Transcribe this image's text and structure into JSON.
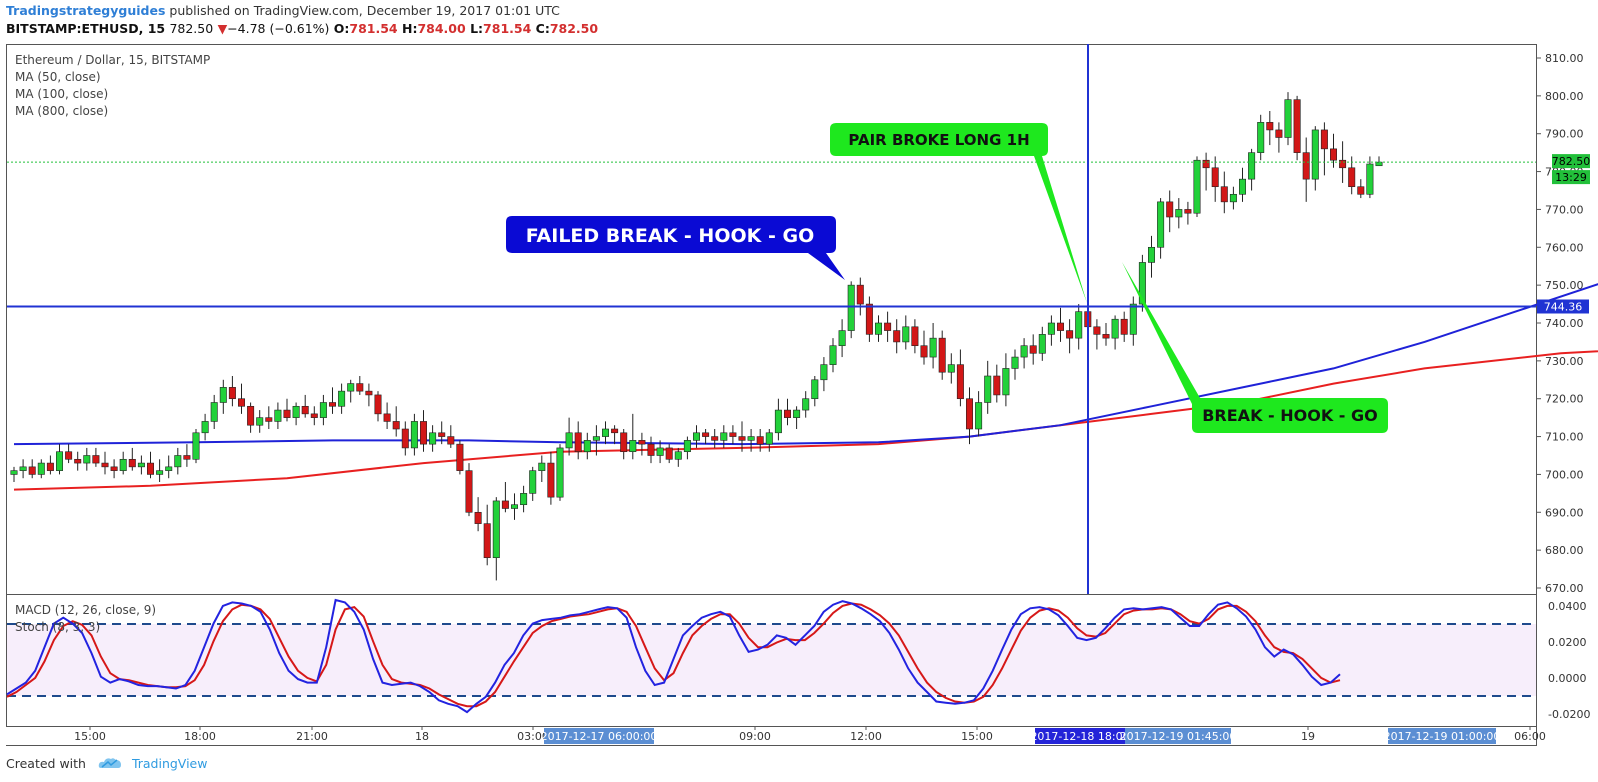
{
  "header": {
    "author": "Tradingstrategyguides",
    "published": "published on TradingView.com, December 19, 2017 01:01 UTC",
    "symbol": "BITSTAMP:ETHUSD, 15",
    "last": "782.50",
    "change_arrow": "▼",
    "change": "−4.78 (−0.61%)",
    "o_label": "O:",
    "o": "781.54",
    "h_label": "H:",
    "h": "784.00",
    "l_label": "L:",
    "l": "781.54",
    "c_label": "C:",
    "c": "782.50"
  },
  "legend": {
    "instrument": "Ethereum / Dollar, 15, BITSTAMP",
    "ma50": "MA (50, close)",
    "ma100": "MA (100, close)",
    "ma800": "MA (800, close)",
    "macd": "MACD (12, 26, close, 9)",
    "stoch": "Stoch (8, 3, 3)"
  },
  "annotations": {
    "failed": "FAILED BREAK - HOOK - GO",
    "pair": "PAIR BROKE LONG 1H",
    "break": "BREAK - HOOK - GO"
  },
  "footer": {
    "created": "Created with",
    "brand": "TradingView"
  },
  "colors": {
    "bull": "#22d13a",
    "bear": "#d21717",
    "ma_blue": "#1f22d8",
    "ma_red": "#e82020",
    "level": "#2033d3",
    "callout_blue": "#0a0ad4",
    "callout_green": "#1ee81e",
    "stoch_k": "#2323e0",
    "stoch_d": "#d61818",
    "stoch_band": "#f7eefb",
    "dashed": "#1e4a8c"
  },
  "chart_data": {
    "type": "candlestick",
    "price_axis": {
      "min": 670,
      "max": 810,
      "ticks": [
        "810.00",
        "800.00",
        "790.00",
        "780.00",
        "770.00",
        "760.00",
        "750.00",
        "740.00",
        "730.00",
        "720.00",
        "710.00",
        "700.00",
        "690.00",
        "680.00",
        "670.00"
      ]
    },
    "last_price": "782.50",
    "last_price_timer": "13:29",
    "horizontal_level": "744.36",
    "osc_axis": {
      "ticks": [
        "0.0400",
        "0.0200",
        "0.0000",
        "-0.0200"
      ]
    },
    "time_axis": {
      "ticks": [
        "15:00",
        "18:00",
        "21:00",
        "18",
        "03:00",
        "09:00",
        "12:00",
        "15:00",
        "19",
        "06:00"
      ]
    },
    "time_highlights": [
      "2017-12-17 06:00:00",
      "2017-12-18 18:00",
      "2017-12-19 01:45:00",
      "2017-12-19 01:00:00"
    ],
    "candles": [
      [
        700,
        702,
        698,
        701
      ],
      [
        701,
        704,
        699,
        702
      ],
      [
        702,
        704,
        699,
        700
      ],
      [
        700,
        704,
        699,
        703
      ],
      [
        703,
        705,
        700,
        701
      ],
      [
        701,
        708,
        700,
        706
      ],
      [
        706,
        708,
        703,
        704
      ],
      [
        704,
        706,
        701,
        703
      ],
      [
        703,
        707,
        701,
        705
      ],
      [
        705,
        707,
        702,
        703
      ],
      [
        703,
        706,
        700,
        702
      ],
      [
        702,
        704,
        699,
        701
      ],
      [
        701,
        706,
        700,
        704
      ],
      [
        704,
        707,
        701,
        702
      ],
      [
        702,
        705,
        700,
        703
      ],
      [
        703,
        706,
        699,
        700
      ],
      [
        700,
        704,
        698,
        701
      ],
      [
        701,
        705,
        699,
        702
      ],
      [
        702,
        707,
        700,
        705
      ],
      [
        705,
        708,
        702,
        704
      ],
      [
        704,
        712,
        703,
        711
      ],
      [
        711,
        716,
        709,
        714
      ],
      [
        714,
        721,
        712,
        719
      ],
      [
        719,
        725,
        716,
        723
      ],
      [
        723,
        726,
        718,
        720
      ],
      [
        720,
        724,
        716,
        718
      ],
      [
        718,
        719,
        711,
        713
      ],
      [
        713,
        717,
        711,
        715
      ],
      [
        715,
        718,
        712,
        714
      ],
      [
        714,
        719,
        712,
        717
      ],
      [
        717,
        720,
        714,
        715
      ],
      [
        715,
        719,
        713,
        718
      ],
      [
        718,
        721,
        715,
        716
      ],
      [
        716,
        718,
        713,
        715
      ],
      [
        715,
        721,
        713,
        719
      ],
      [
        719,
        723,
        716,
        718
      ],
      [
        718,
        724,
        716,
        722
      ],
      [
        722,
        725,
        719,
        724
      ],
      [
        724,
        726,
        721,
        722
      ],
      [
        722,
        724,
        718,
        721
      ],
      [
        721,
        722,
        714,
        716
      ],
      [
        716,
        719,
        712,
        714
      ],
      [
        714,
        718,
        710,
        712
      ],
      [
        712,
        714,
        705,
        707
      ],
      [
        707,
        716,
        705,
        714
      ],
      [
        714,
        717,
        706,
        708
      ],
      [
        708,
        713,
        706,
        711
      ],
      [
        711,
        714,
        708,
        710
      ],
      [
        710,
        713,
        707,
        708
      ],
      [
        708,
        709,
        700,
        701
      ],
      [
        701,
        703,
        689,
        690
      ],
      [
        690,
        694,
        685,
        687
      ],
      [
        687,
        692,
        676,
        678
      ],
      [
        678,
        694,
        672,
        693
      ],
      [
        693,
        698,
        690,
        691
      ],
      [
        691,
        695,
        688,
        692
      ],
      [
        692,
        697,
        690,
        695
      ],
      [
        695,
        702,
        693,
        701
      ],
      [
        701,
        705,
        698,
        703
      ],
      [
        703,
        706,
        692,
        694
      ],
      [
        694,
        708,
        693,
        707
      ],
      [
        707,
        715,
        705,
        711
      ],
      [
        711,
        714,
        704,
        706
      ],
      [
        706,
        711,
        704,
        709
      ],
      [
        709,
        713,
        705,
        710
      ],
      [
        710,
        714,
        708,
        712
      ],
      [
        712,
        713,
        708,
        711
      ],
      [
        711,
        712,
        704,
        706
      ],
      [
        706,
        716,
        704,
        709
      ],
      [
        709,
        711,
        705,
        708
      ],
      [
        708,
        710,
        703,
        705
      ],
      [
        705,
        709,
        703,
        707
      ],
      [
        707,
        708,
        703,
        704
      ],
      [
        704,
        707,
        702,
        706
      ],
      [
        706,
        710,
        704,
        709
      ],
      [
        709,
        713,
        707,
        711
      ],
      [
        711,
        712,
        708,
        710
      ],
      [
        710,
        712,
        707,
        709
      ],
      [
        709,
        713,
        707,
        711
      ],
      [
        711,
        713,
        708,
        710
      ],
      [
        710,
        714,
        706,
        709
      ],
      [
        709,
        712,
        706,
        710
      ],
      [
        710,
        712,
        706,
        708
      ],
      [
        708,
        712,
        706,
        711
      ],
      [
        711,
        720,
        709,
        717
      ],
      [
        717,
        720,
        713,
        715
      ],
      [
        715,
        718,
        712,
        717
      ],
      [
        717,
        722,
        715,
        720
      ],
      [
        720,
        726,
        718,
        725
      ],
      [
        725,
        731,
        722,
        729
      ],
      [
        729,
        736,
        727,
        734
      ],
      [
        734,
        741,
        731,
        738
      ],
      [
        738,
        751,
        736,
        750
      ],
      [
        750,
        752,
        742,
        745
      ],
      [
        745,
        747,
        735,
        737
      ],
      [
        737,
        742,
        735,
        740
      ],
      [
        740,
        743,
        735,
        738
      ],
      [
        738,
        741,
        732,
        735
      ],
      [
        735,
        742,
        733,
        739
      ],
      [
        739,
        741,
        732,
        734
      ],
      [
        734,
        738,
        729,
        731
      ],
      [
        731,
        740,
        728,
        736
      ],
      [
        736,
        738,
        725,
        727
      ],
      [
        727,
        732,
        724,
        729
      ],
      [
        729,
        733,
        718,
        720
      ],
      [
        720,
        723,
        708,
        712
      ],
      [
        712,
        722,
        710,
        719
      ],
      [
        719,
        730,
        716,
        726
      ],
      [
        726,
        729,
        719,
        721
      ],
      [
        721,
        732,
        718,
        728
      ],
      [
        728,
        733,
        725,
        731
      ],
      [
        731,
        736,
        728,
        734
      ],
      [
        734,
        737,
        729,
        732
      ],
      [
        732,
        739,
        730,
        737
      ],
      [
        737,
        742,
        734,
        740
      ],
      [
        740,
        744,
        735,
        738
      ],
      [
        738,
        741,
        732,
        736
      ],
      [
        736,
        745,
        733,
        743
      ],
      [
        743,
        745,
        736,
        739
      ],
      [
        739,
        741,
        733,
        737
      ],
      [
        737,
        740,
        734,
        736
      ],
      [
        736,
        742,
        733,
        741
      ],
      [
        741,
        743,
        735,
        737
      ],
      [
        737,
        747,
        734,
        745
      ],
      [
        745,
        758,
        743,
        756
      ],
      [
        756,
        763,
        752,
        760
      ],
      [
        760,
        773,
        757,
        772
      ],
      [
        772,
        775,
        764,
        768
      ],
      [
        768,
        773,
        765,
        770
      ],
      [
        770,
        772,
        766,
        769
      ],
      [
        769,
        784,
        768,
        783
      ],
      [
        783,
        785,
        775,
        781
      ],
      [
        781,
        784,
        772,
        776
      ],
      [
        776,
        780,
        769,
        772
      ],
      [
        772,
        776,
        770,
        774
      ],
      [
        774,
        781,
        772,
        778
      ],
      [
        778,
        786,
        775,
        785
      ],
      [
        785,
        795,
        783,
        793
      ],
      [
        793,
        796,
        787,
        791
      ],
      [
        791,
        793,
        785,
        789
      ],
      [
        789,
        801,
        787,
        799
      ],
      [
        799,
        800,
        783,
        785
      ],
      [
        785,
        789,
        772,
        778
      ],
      [
        778,
        792,
        775,
        791
      ],
      [
        791,
        793,
        779,
        786
      ],
      [
        786,
        790,
        781,
        783
      ],
      [
        783,
        788,
        777,
        781
      ],
      [
        781,
        784,
        774,
        776
      ],
      [
        776,
        778,
        773,
        774
      ],
      [
        774,
        784,
        773,
        782
      ],
      [
        781.54,
        784,
        781.54,
        782.5
      ]
    ],
    "ma_blue_points": [
      [
        0,
        708
      ],
      [
        20,
        708.5
      ],
      [
        35,
        709
      ],
      [
        50,
        709
      ],
      [
        60,
        708.5
      ],
      [
        80,
        708
      ],
      [
        95,
        708.5
      ],
      [
        105,
        710
      ],
      [
        115,
        713
      ],
      [
        125,
        718
      ],
      [
        135,
        723
      ],
      [
        145,
        728
      ],
      [
        155,
        735
      ],
      [
        165,
        743
      ],
      [
        175,
        751
      ],
      [
        185,
        756
      ],
      [
        190,
        757.5
      ]
    ],
    "ma_red_points": [
      [
        0,
        696
      ],
      [
        15,
        697
      ],
      [
        30,
        699
      ],
      [
        45,
        703
      ],
      [
        60,
        706
      ],
      [
        80,
        707
      ],
      [
        95,
        708
      ],
      [
        105,
        710
      ],
      [
        115,
        713
      ],
      [
        125,
        716
      ],
      [
        135,
        719
      ],
      [
        145,
        724
      ],
      [
        155,
        728
      ],
      [
        170,
        732
      ],
      [
        185,
        734
      ],
      [
        190,
        735
      ]
    ],
    "stoch_k": [
      0.2,
      0.25,
      0.3,
      0.4,
      0.6,
      0.8,
      0.85,
      0.8,
      0.72,
      0.55,
      0.35,
      0.3,
      0.33,
      0.31,
      0.28,
      0.27,
      0.27,
      0.26,
      0.25,
      0.28,
      0.4,
      0.6,
      0.8,
      0.95,
      0.98,
      0.97,
      0.95,
      0.9,
      0.75,
      0.55,
      0.4,
      0.33,
      0.3,
      0.3,
      0.6,
      1.0,
      0.98,
      0.9,
      0.75,
      0.5,
      0.3,
      0.28,
      0.29,
      0.3,
      0.27,
      0.22,
      0.15,
      0.12,
      0.1,
      0.05,
      0.12,
      0.18,
      0.3,
      0.45,
      0.55,
      0.7,
      0.8,
      0.83,
      0.84,
      0.85,
      0.87,
      0.88,
      0.9,
      0.92,
      0.94,
      0.93,
      0.85,
      0.6,
      0.4,
      0.28,
      0.3,
      0.5,
      0.7,
      0.78,
      0.85,
      0.88,
      0.9,
      0.86,
      0.7,
      0.56,
      0.58,
      0.62,
      0.7,
      0.68,
      0.62,
      0.7,
      0.78,
      0.9,
      0.96,
      0.99,
      0.97,
      0.93,
      0.88,
      0.82,
      0.72,
      0.58,
      0.42,
      0.3,
      0.22,
      0.14,
      0.13,
      0.12,
      0.13,
      0.15,
      0.25,
      0.4,
      0.58,
      0.75,
      0.88,
      0.93,
      0.94,
      0.92,
      0.87,
      0.78,
      0.68,
      0.66,
      0.68,
      0.76,
      0.85,
      0.92,
      0.93,
      0.92,
      0.93,
      0.94,
      0.92,
      0.85,
      0.78,
      0.78,
      0.88,
      0.96,
      0.98,
      0.93,
      0.86,
      0.75,
      0.6,
      0.52,
      0.58,
      0.54,
      0.45,
      0.35,
      0.28,
      0.3,
      0.37
    ],
    "stoch_d": [
      0.18,
      0.22,
      0.28,
      0.34,
      0.48,
      0.66,
      0.78,
      0.82,
      0.79,
      0.7,
      0.52,
      0.38,
      0.33,
      0.32,
      0.3,
      0.28,
      0.27,
      0.26,
      0.26,
      0.27,
      0.32,
      0.45,
      0.65,
      0.82,
      0.92,
      0.96,
      0.95,
      0.92,
      0.84,
      0.68,
      0.52,
      0.4,
      0.34,
      0.31,
      0.45,
      0.75,
      0.92,
      0.94,
      0.86,
      0.65,
      0.45,
      0.33,
      0.3,
      0.29,
      0.28,
      0.25,
      0.2,
      0.16,
      0.12,
      0.1,
      0.1,
      0.14,
      0.22,
      0.35,
      0.48,
      0.6,
      0.72,
      0.78,
      0.82,
      0.84,
      0.86,
      0.87,
      0.88,
      0.9,
      0.92,
      0.93,
      0.9,
      0.78,
      0.6,
      0.42,
      0.32,
      0.38,
      0.55,
      0.7,
      0.78,
      0.84,
      0.88,
      0.88,
      0.8,
      0.68,
      0.6,
      0.6,
      0.64,
      0.67,
      0.66,
      0.66,
      0.72,
      0.8,
      0.89,
      0.95,
      0.97,
      0.96,
      0.92,
      0.87,
      0.8,
      0.7,
      0.56,
      0.42,
      0.3,
      0.22,
      0.17,
      0.14,
      0.13,
      0.14,
      0.18,
      0.28,
      0.42,
      0.58,
      0.74,
      0.85,
      0.91,
      0.93,
      0.91,
      0.85,
      0.76,
      0.7,
      0.69,
      0.72,
      0.8,
      0.88,
      0.91,
      0.92,
      0.92,
      0.93,
      0.92,
      0.88,
      0.82,
      0.8,
      0.84,
      0.92,
      0.95,
      0.95,
      0.9,
      0.82,
      0.7,
      0.6,
      0.56,
      0.55,
      0.5,
      0.42,
      0.34,
      0.3,
      0.32
    ]
  }
}
